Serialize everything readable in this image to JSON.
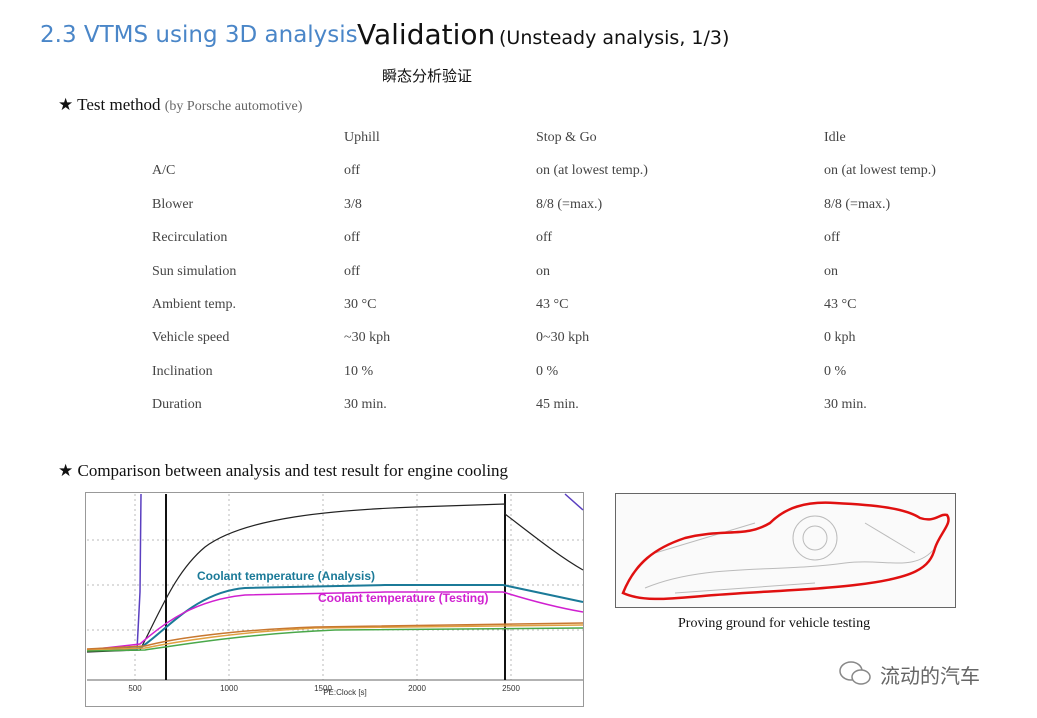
{
  "header": {
    "section": "2.3 VTMS using 3D analysis",
    "title": "Validation",
    "subtitle": "(Unsteady analysis, 1/3)",
    "note": "瞬态分析验证"
  },
  "test_method": {
    "heading": "★ Test method",
    "source": "(by Porsche automotive)",
    "columns": [
      "Uphill",
      "Stop & Go",
      "Idle"
    ],
    "rows": [
      {
        "label": "A/C",
        "cells": [
          "off",
          "on (at lowest temp.)",
          "on (at lowest temp.)"
        ]
      },
      {
        "label": "Blower",
        "cells": [
          "3/8",
          "8/8 (=max.)",
          "8/8 (=max.)"
        ]
      },
      {
        "label": "Recirculation",
        "cells": [
          "off",
          "off",
          "off"
        ]
      },
      {
        "label": "Sun simulation",
        "cells": [
          "off",
          "on",
          "on"
        ]
      },
      {
        "label": "Ambient temp.",
        "cells": [
          "30 °C",
          "43 °C",
          "43 °C"
        ]
      },
      {
        "label": "Vehicle speed",
        "cells": [
          "~30 kph",
          "0~30 kph",
          "0 kph"
        ]
      },
      {
        "label": "Inclination",
        "cells": [
          "10 %",
          "0 %",
          "0 %"
        ]
      },
      {
        "label": "Duration",
        "cells": [
          "30 min.",
          "45 min.",
          "30 min."
        ]
      }
    ]
  },
  "comparison": {
    "heading": "★ Comparison between analysis and test result for engine cooling",
    "chart": {
      "annotations": [
        "Coolant temperature (Analysis)",
        "Coolant temperature (Testing)"
      ],
      "x_label": "PE:Clock [s]",
      "xtick_labels": [
        500,
        1000,
        1500,
        2000,
        2500
      ]
    }
  },
  "map": {
    "caption": "Proving ground for vehicle testing"
  },
  "watermark": "流动的汽车"
}
